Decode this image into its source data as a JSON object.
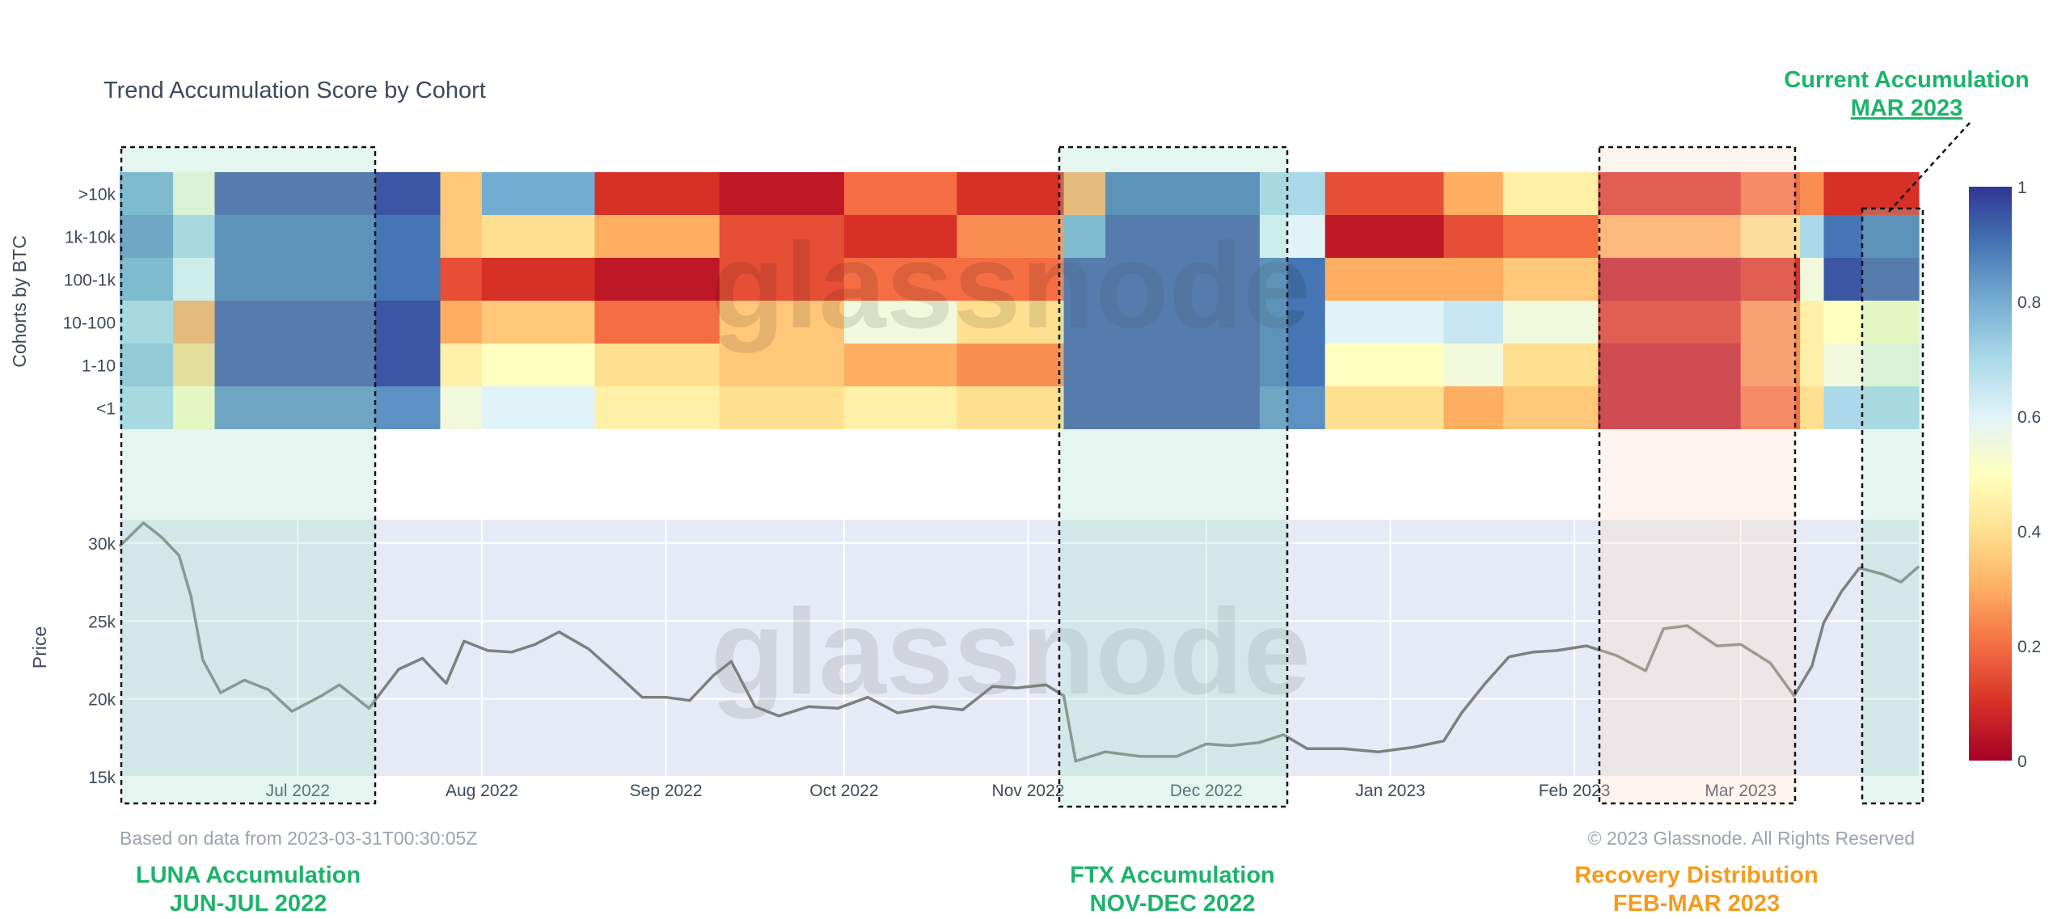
{
  "chart_data": [
    {
      "type": "heatmap",
      "title": "Trend Accumulation Score by Cohort",
      "ylabel": "Cohorts by BTC",
      "rows": [
        ">10k",
        "1k-10k",
        "100-1k",
        "10-100",
        "1-10",
        "<1"
      ],
      "x_range": [
        "2022-06-01",
        "2023-03-31"
      ],
      "colorscale": {
        "min": 0,
        "max": 1,
        "ticks": [
          "0",
          "0.2",
          "0.4",
          "0.6",
          "0.8",
          "1"
        ],
        "colors": [
          "#a50026",
          "#d73027",
          "#f46d43",
          "#fdae61",
          "#fee090",
          "#ffffbf",
          "#e0f3f8",
          "#abd9e9",
          "#74add1",
          "#4575b4",
          "#313695"
        ]
      },
      "segments": [
        {
          "from": "2022-06-01",
          "to": "2022-06-10",
          "values": [
            0.8,
            0.85,
            0.8,
            0.7,
            0.75,
            0.7
          ]
        },
        {
          "from": "2022-06-10",
          "to": "2022-06-17",
          "values": [
            0.55,
            0.7,
            0.6,
            0.3,
            0.4,
            0.5
          ]
        },
        {
          "from": "2022-06-17",
          "to": "2022-07-25",
          "values": [
            0.95,
            0.9,
            0.9,
            0.95,
            0.95,
            0.85
          ]
        },
        {
          "from": "2022-07-25",
          "to": "2022-08-01",
          "values": [
            0.35,
            0.35,
            0.15,
            0.3,
            0.45,
            0.55
          ]
        },
        {
          "from": "2022-08-01",
          "to": "2022-08-20",
          "values": [
            0.8,
            0.4,
            0.1,
            0.35,
            0.5,
            0.6
          ]
        },
        {
          "from": "2022-08-20",
          "to": "2022-09-10",
          "values": [
            0.1,
            0.3,
            0.05,
            0.2,
            0.4,
            0.45
          ]
        },
        {
          "from": "2022-09-10",
          "to": "2022-10-01",
          "values": [
            0.05,
            0.15,
            0.15,
            0.35,
            0.35,
            0.4
          ]
        },
        {
          "from": "2022-10-01",
          "to": "2022-10-20",
          "values": [
            0.2,
            0.1,
            0.2,
            0.55,
            0.3,
            0.45
          ]
        },
        {
          "from": "2022-10-20",
          "to": "2022-11-07",
          "values": [
            0.1,
            0.25,
            0.2,
            0.4,
            0.25,
            0.4
          ]
        },
        {
          "from": "2022-11-07",
          "to": "2022-11-14",
          "values": [
            0.3,
            0.8,
            0.95,
            0.95,
            0.95,
            0.95
          ]
        },
        {
          "from": "2022-11-14",
          "to": "2022-12-10",
          "values": [
            0.9,
            0.95,
            0.95,
            0.95,
            0.95,
            0.95
          ]
        },
        {
          "from": "2022-12-10",
          "to": "2022-12-21",
          "values": [
            0.7,
            0.6,
            0.9,
            0.9,
            0.9,
            0.85
          ]
        },
        {
          "from": "2022-12-21",
          "to": "2023-01-10",
          "values": [
            0.15,
            0.05,
            0.3,
            0.6,
            0.5,
            0.4
          ]
        },
        {
          "from": "2023-01-10",
          "to": "2023-01-20",
          "values": [
            0.3,
            0.15,
            0.3,
            0.65,
            0.55,
            0.3
          ]
        },
        {
          "from": "2023-01-20",
          "to": "2023-02-05",
          "values": [
            0.45,
            0.2,
            0.35,
            0.55,
            0.4,
            0.35
          ]
        },
        {
          "from": "2023-02-05",
          "to": "2023-03-01",
          "values": [
            0.1,
            0.3,
            0.05,
            0.1,
            0.05,
            0.05
          ]
        },
        {
          "from": "2023-03-01",
          "to": "2023-03-11",
          "values": [
            0.2,
            0.4,
            0.1,
            0.25,
            0.25,
            0.2
          ]
        },
        {
          "from": "2023-03-11",
          "to": "2023-03-15",
          "values": [
            0.25,
            0.7,
            0.55,
            0.45,
            0.45,
            0.4
          ]
        },
        {
          "from": "2023-03-15",
          "to": "2023-03-31",
          "values": [
            0.1,
            0.9,
            0.95,
            0.5,
            0.55,
            0.7
          ]
        }
      ]
    },
    {
      "type": "line",
      "ylabel": "Price",
      "x_ticks": [
        "Jul 2022",
        "Aug 2022",
        "Sep 2022",
        "Oct 2022",
        "Nov 2022",
        "Dec 2022",
        "Jan 2023",
        "Feb 2023",
        "Mar 2023"
      ],
      "y_ticks": [
        "15k",
        "20k",
        "25k",
        "30k"
      ],
      "ylim": [
        15000,
        31500
      ],
      "x": [
        "2022-06-01",
        "2022-06-05",
        "2022-06-08",
        "2022-06-11",
        "2022-06-13",
        "2022-06-15",
        "2022-06-18",
        "2022-06-22",
        "2022-06-26",
        "2022-06-30",
        "2022-07-05",
        "2022-07-08",
        "2022-07-13",
        "2022-07-18",
        "2022-07-22",
        "2022-07-26",
        "2022-07-29",
        "2022-08-02",
        "2022-08-06",
        "2022-08-10",
        "2022-08-14",
        "2022-08-19",
        "2022-08-24",
        "2022-08-28",
        "2022-09-01",
        "2022-09-05",
        "2022-09-09",
        "2022-09-12",
        "2022-09-16",
        "2022-09-20",
        "2022-09-25",
        "2022-09-30",
        "2022-10-05",
        "2022-10-10",
        "2022-10-16",
        "2022-10-21",
        "2022-10-26",
        "2022-10-30",
        "2022-11-04",
        "2022-11-07",
        "2022-11-09",
        "2022-11-14",
        "2022-11-20",
        "2022-11-26",
        "2022-12-01",
        "2022-12-05",
        "2022-12-10",
        "2022-12-14",
        "2022-12-18",
        "2022-12-24",
        "2022-12-30",
        "2023-01-05",
        "2023-01-10",
        "2023-01-13",
        "2023-01-17",
        "2023-01-21",
        "2023-01-25",
        "2023-01-29",
        "2023-02-03",
        "2023-02-08",
        "2023-02-13",
        "2023-02-16",
        "2023-02-20",
        "2023-02-25",
        "2023-03-01",
        "2023-03-06",
        "2023-03-10",
        "2023-03-13",
        "2023-03-15",
        "2023-03-18",
        "2023-03-21",
        "2023-03-25",
        "2023-03-28",
        "2023-03-31"
      ],
      "y": [
        29800,
        31300,
        30400,
        29200,
        26600,
        22500,
        20400,
        21200,
        20600,
        19200,
        20200,
        20900,
        19400,
        21900,
        22600,
        21000,
        23700,
        23100,
        23000,
        23500,
        24300,
        23200,
        21500,
        20100,
        20100,
        19900,
        21500,
        22400,
        19500,
        18900,
        19500,
        19400,
        20100,
        19100,
        19500,
        19300,
        20800,
        20700,
        20900,
        20200,
        16000,
        16600,
        16300,
        16300,
        17100,
        17000,
        17200,
        17700,
        16800,
        16800,
        16600,
        16900,
        17300,
        19100,
        21000,
        22700,
        23000,
        23100,
        23400,
        22800,
        21800,
        24500,
        24700,
        23400,
        23500,
        22300,
        20200,
        22100,
        24900,
        26900,
        28400,
        28000,
        27500,
        28500
      ]
    }
  ],
  "heatmap_watermark": "glassnode",
  "price_watermark": "glassnode",
  "footer": {
    "source_note": "Based on data from 2023-03-31T00:30:05Z",
    "copyright": "© 2023 Glassnode. All Rights Reserved"
  },
  "annotations": {
    "luna": {
      "line1": "LUNA Accumulation",
      "line2": "JUN-JUL 2022",
      "color": "#1db36b"
    },
    "ftx": {
      "line1": "FTX Accumulation",
      "line2": "NOV-DEC 2022",
      "color": "#1db36b"
    },
    "recovery": {
      "line1": "Recovery Distribution",
      "line2": "FEB-MAR 2023",
      "color": "#f39c1f"
    },
    "current": {
      "line1": "Current Accumulation",
      "line2": "MAR 2023",
      "color": "#1db36b"
    }
  }
}
